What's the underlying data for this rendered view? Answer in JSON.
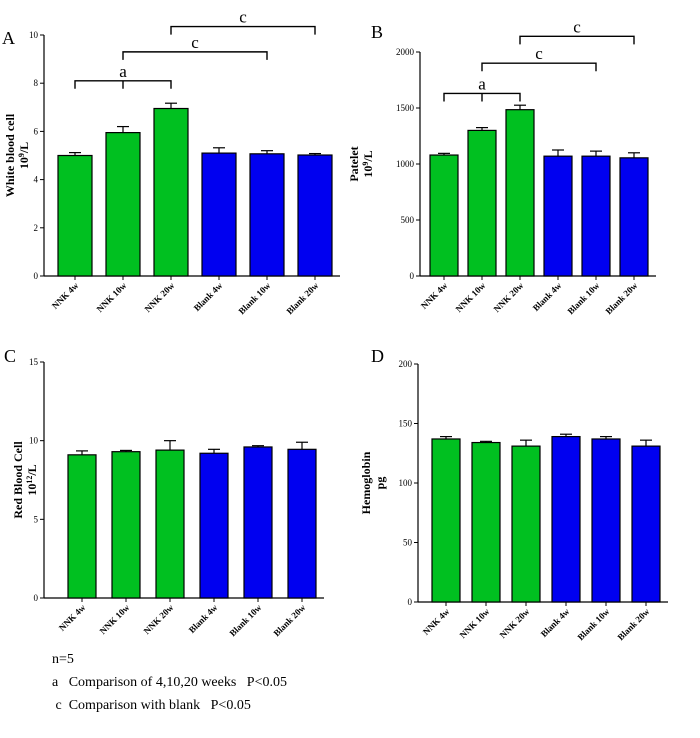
{
  "colors": {
    "nnk": "#00C020",
    "blank": "#0000F0",
    "axis": "#000000"
  },
  "chart_data": [
    {
      "type": "bar",
      "panel": "A",
      "ylabel_line1": "White blood cell",
      "ylabel_line2_base": "10",
      "ylabel_line2_sup": "9",
      "ylabel_line2_end": "/L",
      "ylim": [
        0,
        10
      ],
      "yticks": [
        0,
        2,
        4,
        6,
        8,
        10
      ],
      "categories": [
        "NNK 4w",
        "NNK 10w",
        "NNK 20w",
        "Blank 4w",
        "Blank 10w",
        "Blank 20w"
      ],
      "values": [
        5.0,
        5.95,
        6.95,
        5.1,
        5.07,
        5.02
      ],
      "errors": [
        0.12,
        0.25,
        0.22,
        0.22,
        0.13,
        0.06
      ],
      "groups": [
        "nnk",
        "nnk",
        "nnk",
        "blank",
        "blank",
        "blank"
      ],
      "brackets": [
        {
          "label": "a",
          "from": 0,
          "to": 2,
          "level": 8.1,
          "mid": 1
        },
        {
          "label": "c",
          "from": 1,
          "to": 4,
          "level": 9.3,
          "mid": 1
        },
        {
          "label": "c",
          "from": 2,
          "to": 5,
          "level": 10.35,
          "mid": 2
        }
      ]
    },
    {
      "type": "bar",
      "panel": "B",
      "ylabel_line1": "Patelet",
      "ylabel_line2_base": "10",
      "ylabel_line2_sup": "9",
      "ylabel_line2_end": "/L",
      "ylim": [
        0,
        2000
      ],
      "yticks": [
        0,
        500,
        1000,
        1500,
        2000
      ],
      "categories": [
        "NNK 4w",
        "NNK 10w",
        "NNK 20w",
        "Blank 4w",
        "Blank 10w",
        "Blank 20w"
      ],
      "values": [
        1080,
        1300,
        1485,
        1070,
        1070,
        1055
      ],
      "errors": [
        15,
        25,
        40,
        55,
        45,
        45
      ],
      "groups": [
        "nnk",
        "nnk",
        "nnk",
        "blank",
        "blank",
        "blank"
      ],
      "brackets": [
        {
          "label": "a",
          "from": 0,
          "to": 2,
          "level": 1630,
          "mid": 1
        },
        {
          "label": "c",
          "from": 1,
          "to": 4,
          "level": 1900,
          "mid": 1
        },
        {
          "label": "c",
          "from": 2,
          "to": 5,
          "level": 2140,
          "mid": 2
        }
      ]
    },
    {
      "type": "bar",
      "panel": "C",
      "ylabel_line1": "Red Blood Cell",
      "ylabel_line2_base": "10",
      "ylabel_line2_sup": "12",
      "ylabel_line2_end": "/L",
      "ylim": [
        0,
        15
      ],
      "yticks": [
        0,
        5,
        10,
        15
      ],
      "categories": [
        "NNK 4w",
        "NNK 10w",
        "NNK 20w",
        "Blank 4w",
        "Blank 10w",
        "Blank 20w"
      ],
      "values": [
        9.1,
        9.3,
        9.4,
        9.2,
        9.6,
        9.45
      ],
      "errors": [
        0.25,
        0.08,
        0.6,
        0.25,
        0.08,
        0.45
      ],
      "groups": [
        "nnk",
        "nnk",
        "nnk",
        "blank",
        "blank",
        "blank"
      ],
      "brackets": []
    },
    {
      "type": "bar",
      "panel": "D",
      "ylabel_line1": "Hemoglobin",
      "ylabel_line2_base": "pg",
      "ylabel_line2_sup": "",
      "ylabel_line2_end": "",
      "ylim": [
        0,
        200
      ],
      "yticks": [
        0,
        50,
        100,
        150,
        200
      ],
      "categories": [
        "NNK 4w",
        "NNK 10w",
        "NNK 20w",
        "Blank 4w",
        "Blank 10w",
        "Blank 20w"
      ],
      "values": [
        137,
        134,
        131,
        139,
        137,
        131
      ],
      "errors": [
        2,
        1,
        5,
        2,
        2,
        5
      ],
      "groups": [
        "nnk",
        "nnk",
        "nnk",
        "blank",
        "blank",
        "blank"
      ],
      "brackets": []
    }
  ],
  "notes": {
    "n": "n=5",
    "a": "a   Comparison of 4,10,20 weeks   P<0.05",
    "c": " c  Comparison with blank   P<0.05"
  }
}
